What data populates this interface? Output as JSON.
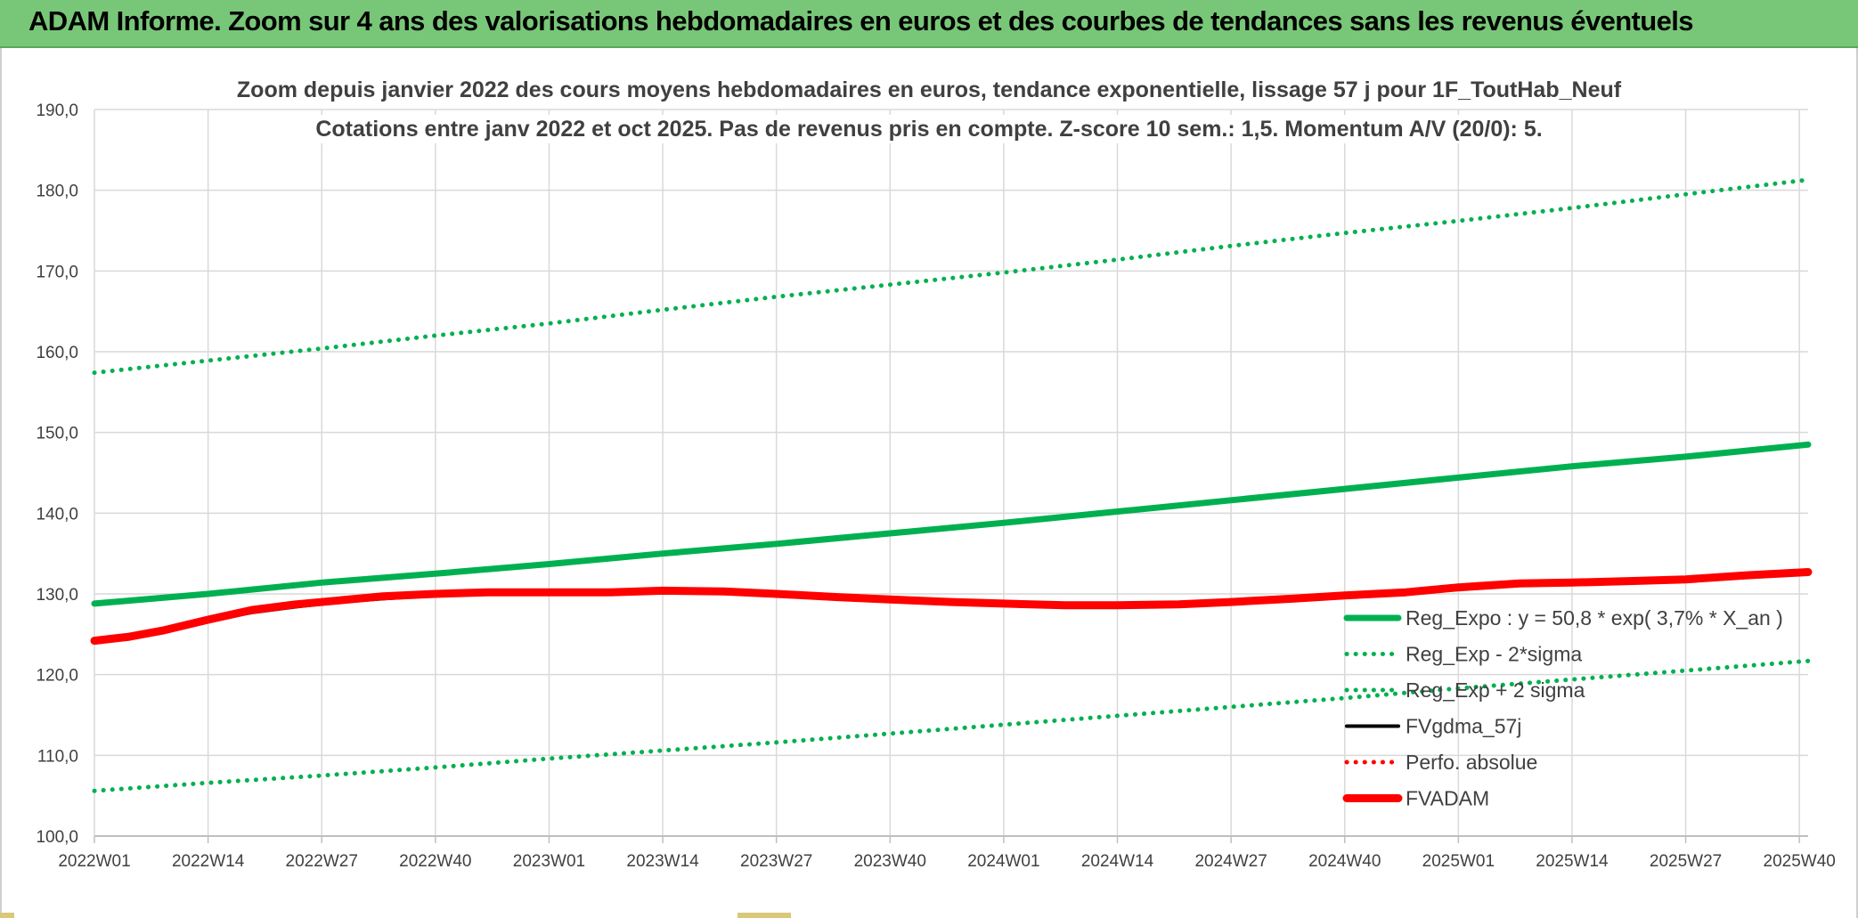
{
  "banner": {
    "title": "ADAM Informe. Zoom sur 4 ans des valorisations hebdomadaires en euros et des courbes de tendances sans les revenus éventuels"
  },
  "colors": {
    "banner_bg": "#78c778",
    "reg_expo": "#00b050",
    "sigma_bands": "#00b050",
    "fvgdma": "#000000",
    "perfo": "#ff0000",
    "fvadam": "#ff0000",
    "grid": "#d9d9d9",
    "text": "#404040"
  },
  "chart_data": {
    "type": "line",
    "title": "Zoom depuis janvier 2022 des cours moyens hebdomadaires en euros, tendance exponentielle, lissage 57 j pour 1F_ToutHab_Neuf",
    "subtitle": "Cotations entre janv 2022 et oct 2025. Pas de revenus pris en compte. Z-score 10 sem.: 1,5. Momentum A/V (20/0): 5.",
    "xlabel": "",
    "ylabel": "",
    "ylim": [
      100,
      190
    ],
    "y_ticks": [
      "100,0",
      "110,0",
      "120,0",
      "130,0",
      "140,0",
      "150,0",
      "160,0",
      "170,0",
      "180,0",
      "190,0"
    ],
    "x_range": [
      0,
      196
    ],
    "x_ticks": [
      {
        "label": "2022W01",
        "x": 0
      },
      {
        "label": "2022W14",
        "x": 13
      },
      {
        "label": "2022W27",
        "x": 26
      },
      {
        "label": "2022W40",
        "x": 39
      },
      {
        "label": "2023W01",
        "x": 52
      },
      {
        "label": "2023W14",
        "x": 65
      },
      {
        "label": "2023W27",
        "x": 78
      },
      {
        "label": "2023W40",
        "x": 91
      },
      {
        "label": "2024W01",
        "x": 104
      },
      {
        "label": "2024W14",
        "x": 117
      },
      {
        "label": "2024W27",
        "x": 130
      },
      {
        "label": "2024W40",
        "x": 143
      },
      {
        "label": "2025W01",
        "x": 156
      },
      {
        "label": "2025W14",
        "x": 169
      },
      {
        "label": "2025W27",
        "x": 182
      },
      {
        "label": "2025W40",
        "x": 195
      }
    ],
    "grid": true,
    "legend_position": "right",
    "series": [
      {
        "name": "Reg_Expo : y = 50,8 * exp( 3,7% *  X_an )",
        "style": "solid-thick",
        "color": "#00b050",
        "x": [
          0,
          13,
          26,
          39,
          52,
          65,
          78,
          91,
          104,
          117,
          130,
          143,
          156,
          169,
          182,
          196
        ],
        "values": [
          128.8,
          130.0,
          131.4,
          132.5,
          133.7,
          135.0,
          136.2,
          137.5,
          138.8,
          140.2,
          141.6,
          143.0,
          144.4,
          145.8,
          147.0,
          148.5
        ]
      },
      {
        "name": "Reg_Exp - 2*sigma",
        "style": "dotted",
        "color": "#00b050",
        "x": [
          0,
          13,
          26,
          39,
          52,
          65,
          78,
          91,
          104,
          117,
          130,
          143,
          156,
          169,
          182,
          196
        ],
        "values": [
          105.6,
          106.6,
          107.5,
          108.5,
          109.6,
          110.6,
          111.6,
          112.7,
          113.8,
          114.9,
          116.0,
          117.1,
          118.3,
          119.4,
          120.5,
          121.7
        ]
      },
      {
        "name": "Reg_Exp + 2 sigma",
        "style": "dotted",
        "color": "#00b050",
        "x": [
          0,
          13,
          26,
          39,
          52,
          65,
          78,
          91,
          104,
          117,
          130,
          143,
          156,
          169,
          182,
          196
        ],
        "values": [
          157.4,
          158.9,
          160.4,
          162.0,
          163.5,
          165.2,
          166.8,
          168.3,
          169.8,
          171.4,
          173.1,
          174.7,
          176.2,
          177.8,
          179.5,
          181.3
        ]
      },
      {
        "name": "FVgdma_57j",
        "style": "solid",
        "color": "#000000",
        "x": [
          0,
          4,
          8,
          13,
          18,
          23,
          28,
          33,
          39,
          45,
          52,
          59,
          65,
          72,
          78,
          85,
          91,
          98,
          104,
          111,
          117,
          124,
          130,
          137,
          143,
          150,
          156,
          163,
          169,
          176,
          182,
          189,
          196
        ],
        "values": [
          124.4,
          124.9,
          125.6,
          126.7,
          127.7,
          128.4,
          129.0,
          129.4,
          129.8,
          130.1,
          130.2,
          130.2,
          130.3,
          130.3,
          130.0,
          129.6,
          129.3,
          129.0,
          128.8,
          128.7,
          128.7,
          128.8,
          129.1,
          129.5,
          129.9,
          130.3,
          130.8,
          131.2,
          131.4,
          131.6,
          131.8,
          132.3,
          132.7
        ]
      },
      {
        "name": "Perfo. absolue",
        "style": "dotted",
        "color": "#ff0000",
        "x": [
          0,
          4,
          8,
          13,
          18,
          23,
          28,
          33,
          39,
          45,
          52,
          59,
          65,
          72,
          78,
          85,
          91,
          98,
          104,
          111,
          117,
          124,
          130,
          137,
          143,
          150,
          156,
          163,
          169,
          176,
          182,
          189,
          196
        ],
        "values": [
          124.2,
          124.7,
          125.5,
          126.8,
          128.0,
          128.7,
          129.2,
          129.7,
          130.0,
          130.2,
          130.2,
          130.2,
          130.4,
          130.3,
          130.0,
          129.6,
          129.3,
          129.0,
          128.8,
          128.6,
          128.6,
          128.7,
          129.0,
          129.4,
          129.8,
          130.2,
          130.8,
          131.3,
          131.4,
          131.6,
          131.8,
          132.3,
          132.7
        ]
      },
      {
        "name": "FVADAM",
        "style": "solid-thick",
        "color": "#ff0000",
        "x": [
          0,
          4,
          8,
          13,
          18,
          23,
          28,
          33,
          39,
          45,
          52,
          59,
          65,
          72,
          78,
          85,
          91,
          98,
          104,
          111,
          117,
          124,
          130,
          137,
          143,
          150,
          156,
          163,
          169,
          176,
          182,
          189,
          196
        ],
        "values": [
          124.2,
          124.7,
          125.5,
          126.8,
          128.0,
          128.7,
          129.2,
          129.7,
          130.0,
          130.2,
          130.2,
          130.2,
          130.4,
          130.3,
          130.0,
          129.6,
          129.3,
          129.0,
          128.8,
          128.6,
          128.6,
          128.7,
          129.0,
          129.4,
          129.8,
          130.2,
          130.8,
          131.3,
          131.4,
          131.6,
          131.8,
          132.3,
          132.7
        ]
      }
    ]
  }
}
